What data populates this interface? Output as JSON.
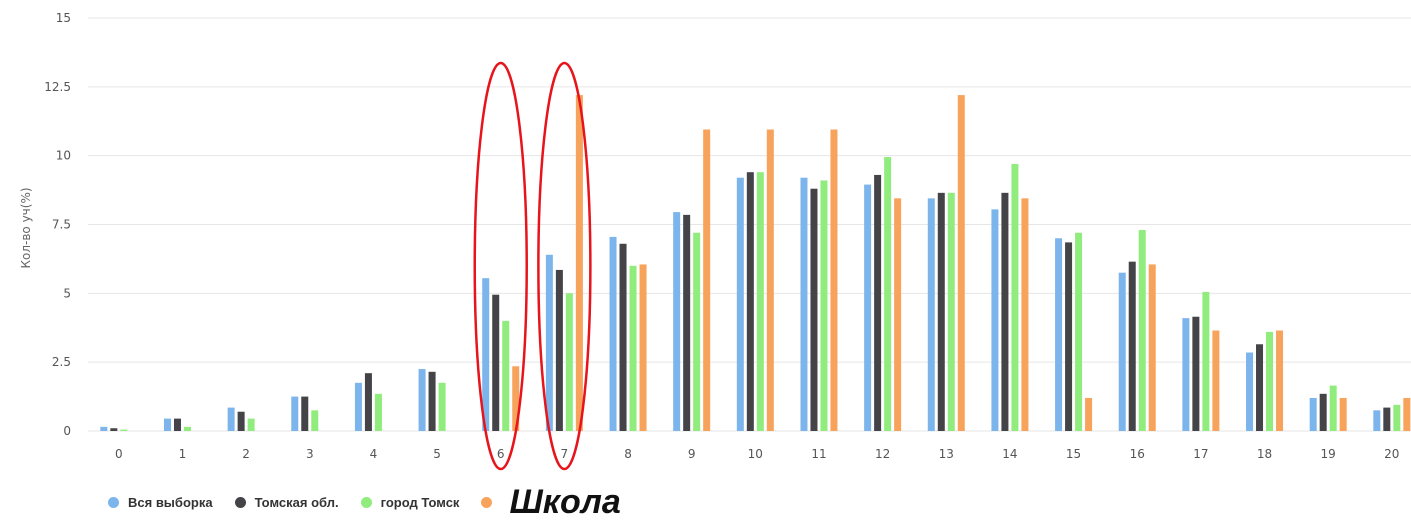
{
  "chart_data": {
    "type": "bar",
    "ylabel": "Кол-во уч(%)",
    "xlabel": "",
    "ylim": [
      0,
      15
    ],
    "yticks": [
      "0",
      "2.5",
      "5",
      "7.5",
      "10",
      "12.5",
      "15"
    ],
    "grid": true,
    "legend_position": "bottom-left",
    "categories": [
      "0",
      "1",
      "2",
      "3",
      "4",
      "5",
      "6",
      "7",
      "8",
      "9",
      "10",
      "11",
      "12",
      "13",
      "14",
      "15",
      "16",
      "17",
      "18",
      "19",
      "20"
    ],
    "series": [
      {
        "name": "Вся выборка",
        "color": "#7cb5ec",
        "values": [
          0.15,
          0.45,
          0.85,
          1.25,
          1.75,
          2.25,
          5.55,
          6.4,
          7.05,
          7.95,
          9.2,
          9.2,
          8.95,
          8.45,
          8.05,
          7.0,
          5.75,
          4.1,
          2.85,
          1.2,
          0.75
        ]
      },
      {
        "name": "Томская обл.",
        "color": "#434348",
        "values": [
          0.1,
          0.45,
          0.7,
          1.25,
          2.1,
          2.15,
          4.95,
          5.85,
          6.8,
          7.85,
          9.4,
          8.8,
          9.3,
          8.65,
          8.65,
          6.85,
          6.15,
          4.15,
          3.15,
          1.35,
          0.85
        ]
      },
      {
        "name": "город Томск",
        "color": "#90ed7d",
        "values": [
          0.05,
          0.15,
          0.45,
          0.75,
          1.35,
          1.75,
          4.0,
          5.0,
          6.0,
          7.2,
          9.4,
          9.1,
          9.95,
          8.65,
          9.7,
          7.2,
          7.3,
          5.05,
          3.6,
          1.65,
          0.95
        ]
      },
      {
        "name": "Школа",
        "color": "#f7a35c",
        "values": [
          0,
          0,
          0,
          0,
          0,
          0,
          2.35,
          12.2,
          6.05,
          10.95,
          10.95,
          10.95,
          8.45,
          12.2,
          8.45,
          1.2,
          6.05,
          3.65,
          3.65,
          1.2,
          1.2
        ]
      }
    ],
    "highlights": [
      "6",
      "7"
    ]
  }
}
